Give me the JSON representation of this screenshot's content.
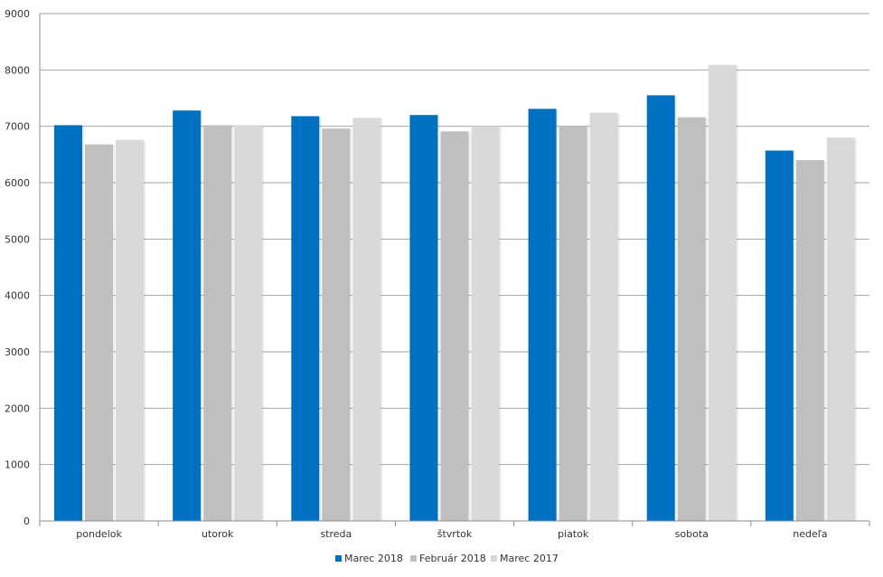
{
  "chart_data": {
    "type": "bar",
    "categories": [
      "pondelok",
      "utorok",
      "streda",
      "štvrtok",
      "piatok",
      "sobota",
      "nedeľa"
    ],
    "series": [
      {
        "name": "Marec 2018",
        "color": "#0070c0",
        "values": [
          7020,
          7280,
          7180,
          7200,
          7310,
          7550,
          6570
        ]
      },
      {
        "name": "Február 2018",
        "color": "#bfbfbf",
        "values": [
          6680,
          7020,
          6960,
          6910,
          7000,
          7160,
          6400
        ]
      },
      {
        "name": "Marec 2017",
        "color": "#d9d9d9",
        "values": [
          6760,
          7020,
          7150,
          7000,
          7240,
          8090,
          6800
        ]
      }
    ],
    "ylim": [
      0,
      9000
    ],
    "yticks": [
      "0",
      "1000",
      "2000",
      "3000",
      "4000",
      "5000",
      "6000",
      "7000",
      "8000",
      "9000"
    ],
    "grid": true,
    "legend_position": "bottom-center"
  }
}
